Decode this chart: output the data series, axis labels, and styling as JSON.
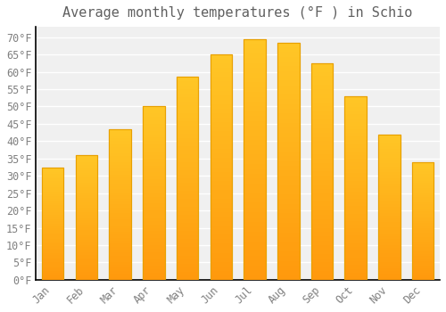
{
  "title": "Average monthly temperatures (°F ) in Schio",
  "months": [
    "Jan",
    "Feb",
    "Mar",
    "Apr",
    "May",
    "Jun",
    "Jul",
    "Aug",
    "Sep",
    "Oct",
    "Nov",
    "Dec"
  ],
  "values": [
    32.5,
    36,
    43.5,
    50,
    58.5,
    65,
    69.5,
    68.5,
    62.5,
    53,
    42,
    34
  ],
  "bar_color_top": "#FFC125",
  "bar_color_bottom": "#FFB000",
  "bar_edge_color": "#E8A000",
  "background_color": "#FFFFFF",
  "plot_bg_color": "#F0F0F0",
  "grid_color": "#FFFFFF",
  "tick_label_color": "#808080",
  "title_color": "#606060",
  "spine_color": "#000000",
  "ylim": [
    0,
    73
  ],
  "yticks": [
    0,
    5,
    10,
    15,
    20,
    25,
    30,
    35,
    40,
    45,
    50,
    55,
    60,
    65,
    70
  ],
  "title_fontsize": 11,
  "tick_fontsize": 8.5,
  "font_family": "monospace"
}
